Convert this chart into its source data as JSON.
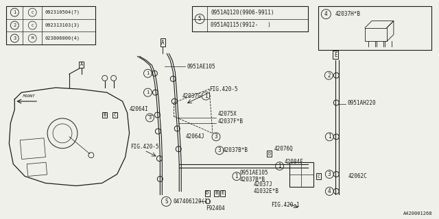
{
  "bg_color": "#f0f0eb",
  "line_color": "#1a1a1a",
  "fig_width": 6.4,
  "fig_height": 3.2,
  "legend_table": [
    [
      "1",
      "C",
      "092310504(7)"
    ],
    [
      "2",
      "C",
      "092313103(3)"
    ],
    [
      "3",
      "N",
      "023806000(4)"
    ]
  ],
  "box5_lines": [
    "0951AQ120(9906-9911)",
    "0951AQ115(9912-   )"
  ],
  "box4_label": "42037H*B",
  "bottom_right_label": "A420001268",
  "part_num_bottom": "047406120(1)"
}
